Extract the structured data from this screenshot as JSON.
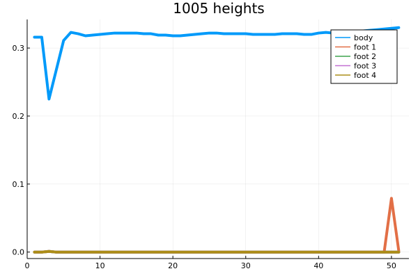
{
  "chart_data": {
    "type": "line",
    "title": "1005 heights",
    "xlabel": "",
    "ylabel": "",
    "xlim": [
      0,
      52.4
    ],
    "ylim": [
      -0.0095,
      0.342
    ],
    "xticks": [
      0,
      10,
      20,
      30,
      40,
      50
    ],
    "xtick_labels": [
      "0",
      "10",
      "20",
      "30",
      "40",
      "50"
    ],
    "yticks": [
      0.0,
      0.1,
      0.2,
      0.3
    ],
    "ytick_labels": [
      "0.0",
      "0.1",
      "0.2",
      "0.3"
    ],
    "grid": true,
    "legend_position": "top-right",
    "x": [
      1,
      2,
      3,
      4,
      5,
      6,
      7,
      8,
      9,
      10,
      11,
      12,
      13,
      14,
      15,
      16,
      17,
      18,
      19,
      20,
      21,
      22,
      23,
      24,
      25,
      26,
      27,
      28,
      29,
      30,
      31,
      32,
      33,
      34,
      35,
      36,
      37,
      38,
      39,
      40,
      41,
      42,
      43,
      44,
      45,
      46,
      47,
      48,
      49,
      50,
      51
    ],
    "series": [
      {
        "name": "body",
        "color": "#009AFA",
        "values": [
          0.316,
          0.316,
          0.225,
          0.268,
          0.311,
          0.323,
          0.321,
          0.318,
          0.319,
          0.32,
          0.321,
          0.322,
          0.322,
          0.322,
          0.322,
          0.321,
          0.321,
          0.319,
          0.319,
          0.318,
          0.318,
          0.319,
          0.32,
          0.321,
          0.322,
          0.322,
          0.321,
          0.321,
          0.321,
          0.321,
          0.32,
          0.32,
          0.32,
          0.32,
          0.321,
          0.321,
          0.321,
          0.32,
          0.32,
          0.322,
          0.323,
          0.322,
          0.321,
          0.322,
          0.323,
          0.325,
          0.326,
          0.327,
          0.328,
          0.329,
          0.33
        ]
      },
      {
        "name": "foot 1",
        "color": "#E26F46",
        "values": [
          0,
          0,
          0.001,
          0,
          0,
          0,
          0,
          0,
          0,
          0,
          0,
          0,
          0,
          0,
          0,
          0,
          0,
          0,
          0,
          0,
          0,
          0,
          0,
          0,
          0,
          0,
          0,
          0,
          0,
          0,
          0,
          0,
          0,
          0,
          0,
          0,
          0,
          0,
          0,
          0,
          0,
          0,
          0,
          0,
          0,
          0,
          0,
          0,
          0,
          0.079,
          0.002
        ]
      },
      {
        "name": "foot 2",
        "color": "#3DA44D",
        "values": [
          0,
          0,
          0.001,
          0,
          0,
          0,
          0,
          0,
          0,
          0,
          0,
          0,
          0,
          0,
          0,
          0,
          0,
          0,
          0,
          0,
          0,
          0,
          0,
          0,
          0,
          0,
          0,
          0,
          0,
          0,
          0,
          0,
          0,
          0,
          0,
          0,
          0,
          0,
          0,
          0,
          0,
          0,
          0,
          0,
          0,
          0,
          0,
          0,
          0,
          0,
          0
        ]
      },
      {
        "name": "foot 3",
        "color": "#C271D2",
        "values": [
          0,
          0,
          0.001,
          0,
          0,
          0,
          0,
          0,
          0,
          0,
          0,
          0,
          0,
          0,
          0,
          0,
          0,
          0,
          0,
          0,
          0,
          0,
          0,
          0,
          0,
          0,
          0,
          0,
          0,
          0,
          0,
          0,
          0,
          0,
          0,
          0,
          0,
          0,
          0,
          0,
          0,
          0,
          0,
          0,
          0,
          0,
          0,
          0,
          0,
          0,
          0
        ]
      },
      {
        "name": "foot 4",
        "color": "#AC8D18",
        "values": [
          0,
          0,
          0.001,
          0,
          0,
          0,
          0,
          0,
          0,
          0,
          0,
          0,
          0,
          0,
          0,
          0,
          0,
          0,
          0,
          0,
          0,
          0,
          0,
          0,
          0,
          0,
          0,
          0,
          0,
          0,
          0,
          0,
          0,
          0,
          0,
          0,
          0,
          0,
          0,
          0,
          0,
          0,
          0,
          0,
          0,
          0,
          0,
          0,
          0,
          0,
          0
        ]
      }
    ]
  }
}
